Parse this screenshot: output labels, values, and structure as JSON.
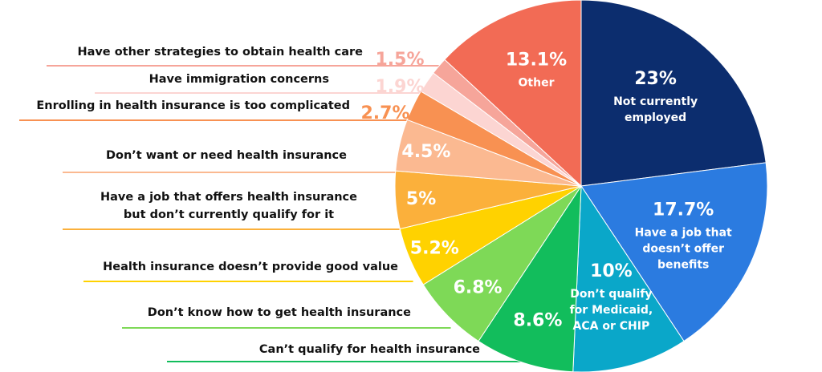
{
  "chart_data": {
    "type": "pie",
    "title": "",
    "slices": [
      {
        "value": 23,
        "label": "23%",
        "category": "Not currently employed",
        "color": "#0c2d6e",
        "label_color": "#ffffff"
      },
      {
        "value": 17.7,
        "label": "17.7%",
        "category": "Have a job that doesn’t offer benefits",
        "color": "#2b7be0",
        "label_color": "#ffffff"
      },
      {
        "value": 10,
        "label": "10%",
        "category": "Don’t qualify for Medicaid, ACA or CHIP",
        "color": "#0aa7c9",
        "label_color": "#ffffff"
      },
      {
        "value": 8.6,
        "label": "8.6%",
        "category": "Can’t qualify for health insurance",
        "color": "#12bd5c",
        "label_color": "#ffffff"
      },
      {
        "value": 6.8,
        "label": "6.8%",
        "category": "Don’t know how to get health insurance",
        "color": "#7ed957",
        "label_color": "#ffffff"
      },
      {
        "value": 5.2,
        "label": "5.2%",
        "category": "Health insurance doesn’t provide good value",
        "color": "#ffd200",
        "label_color": "#ffffff"
      },
      {
        "value": 5,
        "label": "5%",
        "category": "Have a job that offers health insurance but don’t currently qualify for it",
        "color": "#fbb03b",
        "label_color": "#ffffff"
      },
      {
        "value": 4.5,
        "label": "4.5%",
        "category": "Don’t want or need health insurance",
        "color": "#fbb991",
        "label_color": "#ffffff"
      },
      {
        "value": 2.7,
        "label": "2.7%",
        "category": "Enrolling in health insurance is too complicated",
        "color": "#f89152",
        "label_color": "#f89152"
      },
      {
        "value": 1.9,
        "label": "1.9%",
        "category": "Have immigration concerns",
        "color": "#fcd5d2",
        "label_color": "#fcd5d2"
      },
      {
        "value": 1.5,
        "label": "1.5%",
        "category": "Have other strategies to obtain health care",
        "color": "#f6a59a",
        "label_color": "#f6a59a"
      },
      {
        "value": 13.1,
        "label": "13.1%",
        "category": "Other",
        "color": "#f26b55",
        "label_color": "#ffffff"
      }
    ],
    "inside_labels": {
      "0": [
        "Not currently",
        "employed"
      ],
      "1": [
        "Have a job that",
        "doesn’t offer",
        "benefits"
      ],
      "2": [
        "Don’t qualify",
        "for Medicaid,",
        "ACA or CHIP"
      ],
      "11": [
        "Other"
      ]
    },
    "left_labels": {
      "3": [
        "Can’t qualify for health insurance"
      ],
      "4": [
        "Don’t know how to get health insurance"
      ],
      "5": [
        "Health insurance doesn’t provide good value"
      ],
      "6": [
        "Have a job that offers health insurance",
        "but don’t currently qualify for it"
      ],
      "7": [
        "Don’t want or need health insurance"
      ],
      "8": [
        "Enrolling in health insurance is too complicated"
      ],
      "9": [
        "Have immigration concerns"
      ],
      "10": [
        "Have other strategies to obtain health care"
      ]
    }
  }
}
